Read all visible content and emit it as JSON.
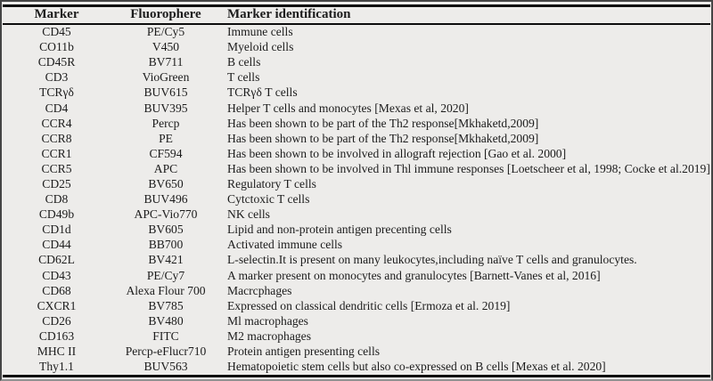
{
  "table": {
    "columns": [
      {
        "label": "Marker"
      },
      {
        "label": "Fluorophere"
      },
      {
        "label": "Marker identification"
      }
    ],
    "rows": [
      {
        "marker": "CD45",
        "fluorophore": "PE/Cy5",
        "identification": "Immune cells"
      },
      {
        "marker": "CO11b",
        "fluorophore": "V450",
        "identification": "Myeloid cells"
      },
      {
        "marker": "CD45R",
        "fluorophore": "BV711",
        "identification": "B cells"
      },
      {
        "marker": "CD3",
        "fluorophore": "VioGreen",
        "identification": "T cells"
      },
      {
        "marker": "TCRγδ",
        "fluorophore": "BUV615",
        "identification": "TCRγδ T cells"
      },
      {
        "marker": "CD4",
        "fluorophore": "BUV395",
        "identification": "Helper T cells and monocytes [Mexas et al, 2020]"
      },
      {
        "marker": "CCR4",
        "fluorophore": "Percp",
        "identification": "Has been shown to be part of the Th2 response[Mkhaketd,2009]"
      },
      {
        "marker": "CCR8",
        "fluorophore": "PE",
        "identification": "Has been shown to be part of the Th2 response[Mkhaketd,2009]"
      },
      {
        "marker": "CCR1",
        "fluorophore": "CF594",
        "identification": "Has been shown to be involved in allograft rejection [Gao et al. 2000]"
      },
      {
        "marker": "CCR5",
        "fluorophore": "APC",
        "identification": "Has been shown to be involved in Thl immune responses [Loetscheer et al, 1998; Cocke et al.2019]"
      },
      {
        "marker": "CD25",
        "fluorophore": "BV650",
        "identification": "Regulatory T cells"
      },
      {
        "marker": "CD8",
        "fluorophore": "BUV496",
        "identification": "Cytctoxic T cells"
      },
      {
        "marker": "CD49b",
        "fluorophore": "APC-Vio770",
        "identification": "NK cells"
      },
      {
        "marker": "CD1d",
        "fluorophore": "BV605",
        "identification": "Lipid and non-protein antigen precenting cells"
      },
      {
        "marker": "CD44",
        "fluorophore": "BB700",
        "identification": "Activated immune cells"
      },
      {
        "marker": "CD62L",
        "fluorophore": "BV421",
        "identification": "L-selectin.It is present on many leukocytes,including naïve T cells and granulocytes."
      },
      {
        "marker": "CD43",
        "fluorophore": "PE/Cy7",
        "identification": "A marker present on monocytes and granulocytes [Barnett-Vanes et al, 2016]"
      },
      {
        "marker": "CD68",
        "fluorophore": "Alexa Flour 700",
        "identification": "Macrcphages"
      },
      {
        "marker": "CXCR1",
        "fluorophore": "BV785",
        "identification": "Expressed on classical dendritic cells [Ermoza et al. 2019]"
      },
      {
        "marker": "CD26",
        "fluorophore": "BV480",
        "identification": "Ml macrophages"
      },
      {
        "marker": "CD163",
        "fluorophore": "FITC",
        "identification": "M2 macrophages"
      },
      {
        "marker": "MHC II",
        "fluorophore": "Percp-eFlucr710",
        "identification": "Protein antigen presenting cells"
      },
      {
        "marker": "Thy1.1",
        "fluorophore": "BUV563",
        "identification": "Hematopoietic stem cells but also co-expressed on B cells [Mexas et al. 2020]"
      }
    ]
  }
}
